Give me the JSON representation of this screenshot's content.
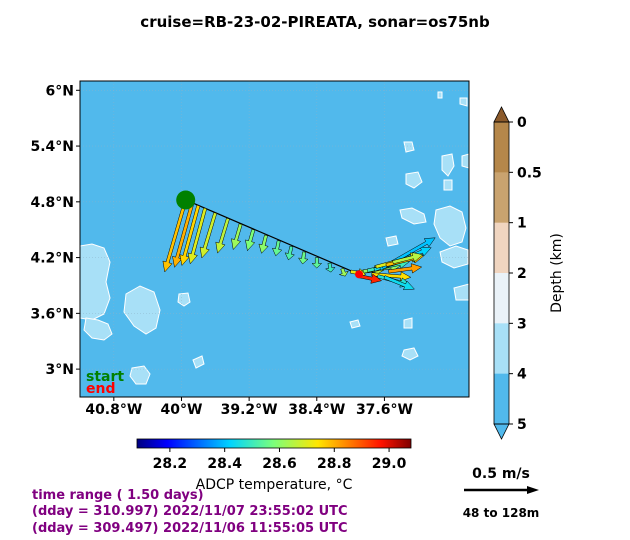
{
  "title": "cruise=RB-23-02-PIREATA,   sonar=os75nb",
  "chart_data": {
    "type": "vector-map",
    "x_axis": {
      "range": [
        -41.2,
        -36.6
      ],
      "ticks": [
        -40.8,
        -40.0,
        -39.2,
        -38.4,
        -37.6
      ],
      "tick_labels": [
        "40.8°W",
        "40°W",
        "39.2°W",
        "38.4°W",
        "37.6°W"
      ]
    },
    "y_axis": {
      "range": [
        2.7,
        6.1
      ],
      "ticks": [
        3.0,
        3.6,
        4.2,
        4.8,
        5.4,
        6.0
      ],
      "tick_labels": [
        "3°N",
        "3.6°N",
        "4.2°N",
        "4.8°N",
        "5.4°N",
        "6°N"
      ]
    },
    "grid": true,
    "track": {
      "start": [
        -39.95,
        4.82
      ],
      "end": [
        -37.9,
        4.02
      ],
      "start_label": "start",
      "end_label": "end"
    },
    "vectors": [
      {
        "lon": -39.95,
        "lat": 4.82,
        "u": -0.14,
        "v": -0.48,
        "temp": 28.78
      },
      {
        "lon": -39.87,
        "lat": 4.79,
        "u": -0.12,
        "v": -0.43,
        "temp": 28.8
      },
      {
        "lon": -39.8,
        "lat": 4.76,
        "u": -0.11,
        "v": -0.4,
        "temp": 28.76
      },
      {
        "lon": -39.72,
        "lat": 4.73,
        "u": -0.1,
        "v": -0.37,
        "temp": 28.7
      },
      {
        "lon": -39.6,
        "lat": 4.68,
        "u": -0.09,
        "v": -0.3,
        "temp": 28.68
      },
      {
        "lon": -39.45,
        "lat": 4.62,
        "u": -0.07,
        "v": -0.23,
        "temp": 28.66
      },
      {
        "lon": -39.3,
        "lat": 4.56,
        "u": -0.05,
        "v": -0.17,
        "temp": 28.62
      },
      {
        "lon": -39.15,
        "lat": 4.5,
        "u": -0.04,
        "v": -0.14,
        "temp": 28.58
      },
      {
        "lon": -39.0,
        "lat": 4.44,
        "u": -0.03,
        "v": -0.12,
        "temp": 28.6
      },
      {
        "lon": -38.85,
        "lat": 4.38,
        "u": -0.02,
        "v": -0.1,
        "temp": 28.55
      },
      {
        "lon": -38.7,
        "lat": 4.32,
        "u": -0.02,
        "v": -0.09,
        "temp": 28.52
      },
      {
        "lon": -38.55,
        "lat": 4.26,
        "u": -0.01,
        "v": -0.08,
        "temp": 28.56
      },
      {
        "lon": -38.4,
        "lat": 4.2,
        "u": 0.0,
        "v": -0.07,
        "temp": 28.54
      },
      {
        "lon": -38.25,
        "lat": 4.14,
        "u": 0.01,
        "v": -0.06,
        "temp": 28.5
      },
      {
        "lon": -38.1,
        "lat": 4.08,
        "u": 0.02,
        "v": -0.05,
        "temp": 28.62
      },
      {
        "lon": -37.95,
        "lat": 4.04,
        "u": 0.2,
        "v": 0.02,
        "temp": 28.66
      },
      {
        "lon": -37.85,
        "lat": 4.05,
        "u": 0.25,
        "v": 0.04,
        "temp": 28.6
      },
      {
        "lon": -37.8,
        "lat": 4.06,
        "u": 0.28,
        "v": 0.06,
        "temp": 28.5
      },
      {
        "lon": -37.72,
        "lat": 4.07,
        "u": 0.32,
        "v": 0.1,
        "temp": 28.45
      },
      {
        "lon": -37.65,
        "lat": 4.08,
        "u": 0.34,
        "v": 0.14,
        "temp": 28.42
      },
      {
        "lon": -37.62,
        "lat": 4.09,
        "u": 0.35,
        "v": 0.2,
        "temp": 28.4
      },
      {
        "lon": -37.7,
        "lat": 4.1,
        "u": 0.3,
        "v": 0.08,
        "temp": 28.7
      },
      {
        "lon": -37.75,
        "lat": 4.02,
        "u": 0.26,
        "v": -0.02,
        "temp": 28.75
      },
      {
        "lon": -37.68,
        "lat": 4.0,
        "u": 0.22,
        "v": -0.06,
        "temp": 28.47
      },
      {
        "lon": -37.6,
        "lat": 3.99,
        "u": 0.2,
        "v": -0.08,
        "temp": 28.44
      },
      {
        "lon": -37.9,
        "lat": 4.0,
        "u": 0.15,
        "v": -0.03,
        "temp": 28.95
      },
      {
        "lon": -38.0,
        "lat": 4.05,
        "u": 0.1,
        "v": -0.02,
        "temp": 28.72
      },
      {
        "lon": -37.58,
        "lat": 4.12,
        "u": 0.25,
        "v": 0.06,
        "temp": 28.78
      },
      {
        "lon": -37.55,
        "lat": 4.05,
        "u": 0.22,
        "v": 0.03,
        "temp": 28.82
      },
      {
        "lon": -37.5,
        "lat": 4.15,
        "u": 0.2,
        "v": 0.05,
        "temp": 28.65
      }
    ],
    "colorbar_temp": {
      "label": "ADCP temperature, °C",
      "range": [
        28.08,
        29.08
      ],
      "ticks": [
        28.2,
        28.4,
        28.6,
        28.8,
        29.0
      ],
      "tick_labels": [
        "28.2",
        "28.4",
        "28.6",
        "28.8",
        "29.0"
      ]
    },
    "colorbar_depth": {
      "label": "Depth (km)",
      "ticks": [
        0,
        0.5,
        1,
        2,
        3,
        4,
        5
      ],
      "tick_labels": [
        "0",
        "0.5",
        "1",
        "2",
        "3",
        "4",
        "5"
      ],
      "colors": [
        "#b5874a",
        "#c9a36f",
        "#f0d5c0",
        "#eaf2f8",
        "#a8e0f7",
        "#51b9ec"
      ],
      "over_color": "#8b5a2b",
      "under_color": "#51b9ec"
    },
    "colors": {
      "ocean": "#51b9ec",
      "shallow": "#a8e0f7",
      "start_marker": "#008000",
      "end_marker": "#ff0000"
    }
  },
  "info": {
    "time_range": "time range ( 1.50 days)",
    "end_time": "(dday = 310.997) 2022/11/07 23:55:02 UTC",
    "start_time": "(dday = 309.497) 2022/11/06 11:55:05 UTC"
  },
  "scale": {
    "label": "0.5 m/s",
    "depth_range": "48 to 128m",
    "value": 0.5
  }
}
